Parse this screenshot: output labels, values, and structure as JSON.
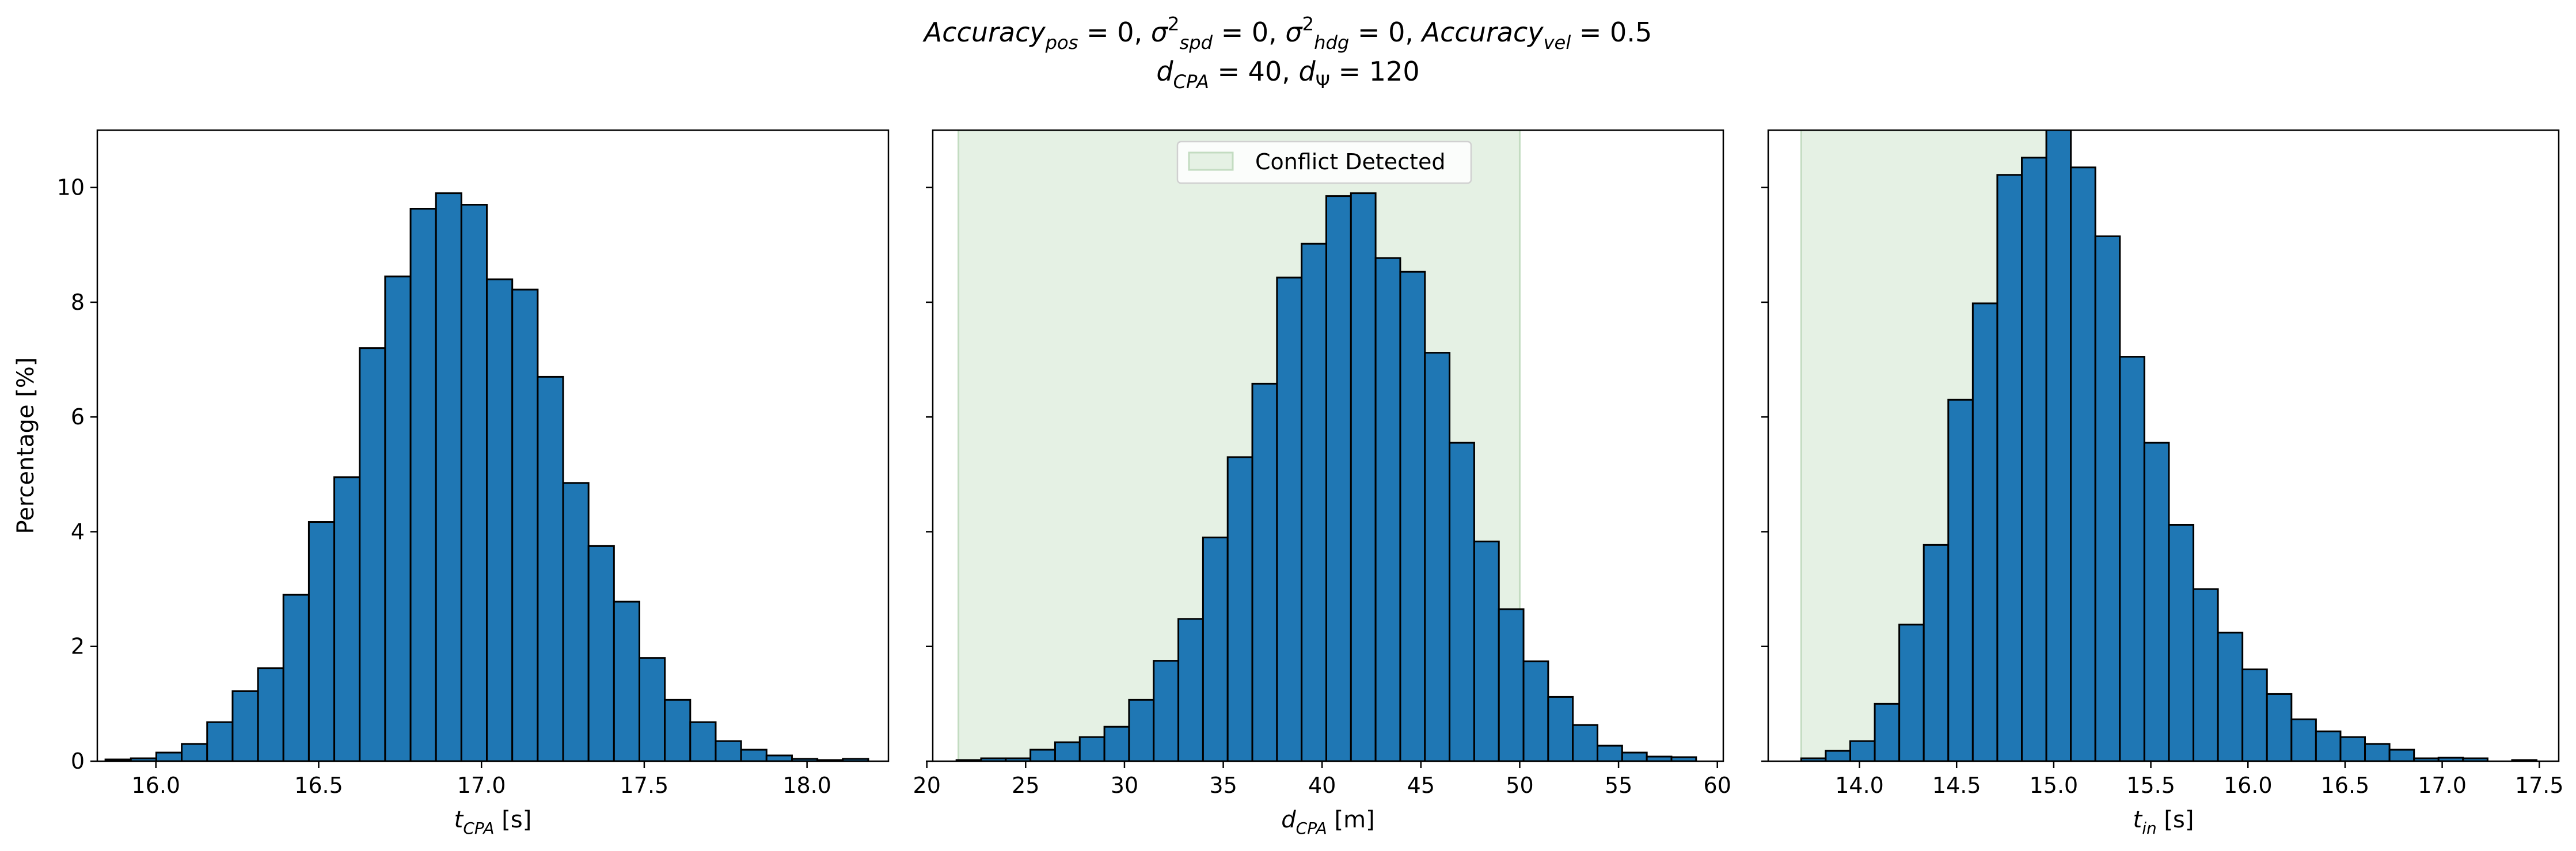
{
  "title": {
    "line1": [
      {
        "t": "Accuracy",
        "i": true
      },
      {
        "t": "pos",
        "i": true,
        "sub": true
      },
      {
        "t": " = 0, "
      },
      {
        "t": "σ",
        "i": true
      },
      {
        "t": "2",
        "sup": true
      },
      {
        "t": "spd",
        "i": true,
        "sub": true
      },
      {
        "t": " = 0, "
      },
      {
        "t": "σ",
        "i": true
      },
      {
        "t": "2",
        "sup": true
      },
      {
        "t": "hdg",
        "i": true,
        "sub": true
      },
      {
        "t": " = 0, "
      },
      {
        "t": "Accuracy",
        "i": true
      },
      {
        "t": "vel",
        "i": true,
        "sub": true
      },
      {
        "t": " = 0.5"
      }
    ],
    "line2": [
      {
        "t": "d",
        "i": true
      },
      {
        "t": "CPA",
        "i": true,
        "sub": true
      },
      {
        "t": " = 40, "
      },
      {
        "t": "d",
        "i": true
      },
      {
        "t": "Ψ",
        "sub": true
      },
      {
        "t": " = 120"
      }
    ]
  },
  "colors": {
    "bar": "#1f77b4",
    "edge": "#000000",
    "shade": "#e5f1e4",
    "shade_edge": "#c3dcc1"
  },
  "legend": {
    "label": "Conflict Detected",
    "placement": "upper center of middle panel"
  },
  "chart_data": [
    {
      "type": "bar",
      "subtype": "histogram",
      "xlabel": [
        {
          "t": "t",
          "i": true
        },
        {
          "t": "CPA",
          "i": true,
          "sub": true
        },
        {
          "t": " [s]"
        }
      ],
      "ylabel": "Percentage [%]",
      "xlim": [
        15.82,
        18.25
      ],
      "ylim": [
        0,
        11
      ],
      "xticks": [
        16.0,
        16.5,
        17.0,
        17.5,
        18.0
      ],
      "xtick_labels": [
        "16.0",
        "16.5",
        "17.0",
        "17.5",
        "18.0"
      ],
      "yticks": [
        0,
        2,
        4,
        6,
        8,
        10
      ],
      "ytick_labels": [
        "0",
        "2",
        "4",
        "6",
        "8",
        "10"
      ],
      "bins": {
        "start": 15.845,
        "width": 0.0781
      },
      "values": [
        0.03,
        0.05,
        0.15,
        0.3,
        0.68,
        1.22,
        1.62,
        2.9,
        4.17,
        4.95,
        7.2,
        8.45,
        9.63,
        9.9,
        9.7,
        8.4,
        8.22,
        6.7,
        4.85,
        3.75,
        2.78,
        1.8,
        1.07,
        0.68,
        0.35,
        0.2,
        0.1,
        0.04,
        0.02,
        0.04
      ]
    },
    {
      "type": "bar",
      "subtype": "histogram",
      "xlabel": [
        {
          "t": "d",
          "i": true
        },
        {
          "t": "CPA",
          "i": true,
          "sub": true
        },
        {
          "t": " [m]"
        }
      ],
      "xlim": [
        20.3,
        60.3
      ],
      "ylim": [
        0,
        11
      ],
      "xticks": [
        20,
        25,
        30,
        35,
        40,
        45,
        50,
        55,
        60
      ],
      "xtick_labels": [
        "20",
        "25",
        "30",
        "35",
        "40",
        "45",
        "50",
        "55",
        "60"
      ],
      "yticks": [
        0,
        2,
        4,
        6,
        8,
        10
      ],
      "shaded_range": [
        21.6,
        50.0
      ],
      "bins": {
        "start": 21.5,
        "width": 1.2475
      },
      "values": [
        0.02,
        0.05,
        0.05,
        0.2,
        0.33,
        0.42,
        0.6,
        1.07,
        1.75,
        2.48,
        3.9,
        5.3,
        6.58,
        8.43,
        9.02,
        9.85,
        9.9,
        8.77,
        8.53,
        7.12,
        5.55,
        3.83,
        2.65,
        1.74,
        1.12,
        0.63,
        0.27,
        0.15,
        0.08,
        0.07
      ]
    },
    {
      "type": "bar",
      "subtype": "histogram",
      "xlabel": [
        {
          "t": "t",
          "i": true
        },
        {
          "t": "in",
          "i": true,
          "sub": true
        },
        {
          "t": " [s]"
        }
      ],
      "xlim": [
        13.53,
        17.6
      ],
      "ylim": [
        0,
        11
      ],
      "xticks": [
        14.0,
        14.5,
        15.0,
        15.5,
        16.0,
        16.5,
        17.0,
        17.5
      ],
      "xtick_labels": [
        "14.0",
        "14.5",
        "15.0",
        "15.5",
        "16.0",
        "16.5",
        "17.0",
        "17.5"
      ],
      "yticks": [
        0,
        2,
        4,
        6,
        8,
        10
      ],
      "shaded_range": [
        13.7,
        15.0
      ],
      "bins": {
        "start": 13.7,
        "width": 0.1262
      },
      "values": [
        0.05,
        0.18,
        0.35,
        1.0,
        2.38,
        3.77,
        6.3,
        7.98,
        10.22,
        10.52,
        11.2,
        10.35,
        9.15,
        7.05,
        5.55,
        4.12,
        3.0,
        2.24,
        1.6,
        1.17,
        0.73,
        0.52,
        0.42,
        0.3,
        0.2,
        0.05,
        0.06,
        0.05,
        0.0,
        0.02
      ]
    }
  ]
}
